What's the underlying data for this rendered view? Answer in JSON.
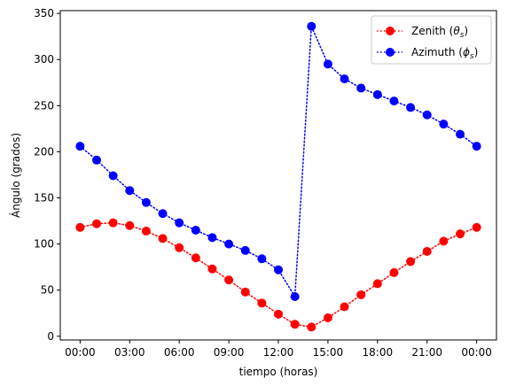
{
  "chart_data": {
    "type": "line",
    "title": "",
    "xlabel": "tiempo (horas)",
    "ylabel": "Ángulo (grados)",
    "x_ticks": [
      "00:00",
      "03:00",
      "06:00",
      "09:00",
      "12:00",
      "15:00",
      "18:00",
      "21:00",
      "00:00"
    ],
    "y_ticks": [
      "0",
      "50",
      "100",
      "150",
      "200",
      "250",
      "300",
      "350"
    ],
    "xlim": [
      -1.2,
      25.2
    ],
    "ylim": [
      -4,
      353
    ],
    "x_hours": [
      0,
      1,
      2,
      3,
      4,
      5,
      6,
      7,
      8,
      9,
      10,
      11,
      12,
      13,
      14,
      15,
      16,
      17,
      18,
      19,
      20,
      21,
      22,
      23,
      24
    ],
    "legend_position": "top-right",
    "grid": false,
    "series": [
      {
        "name": "Zenith (θs)",
        "color": "#ff0000",
        "marker": "circle",
        "line_style": "dotted",
        "values": [
          118,
          122,
          123,
          120,
          114,
          106,
          96,
          85,
          73,
          61,
          48,
          36,
          24,
          13,
          10,
          20,
          32,
          45,
          57,
          69,
          81,
          92,
          103,
          111,
          118
        ]
      },
      {
        "name": "Azimuth (ϕs)",
        "color": "#0000ff",
        "marker": "circle",
        "line_style": "dotted",
        "values": [
          206,
          191,
          174,
          158,
          145,
          133,
          123,
          115,
          107,
          100,
          93,
          84,
          72,
          43,
          336,
          295,
          279,
          269,
          262,
          255,
          248,
          240,
          230,
          219,
          206
        ]
      }
    ],
    "legend": {
      "zenith_main": "Zenith (",
      "zenith_sym": "θ",
      "zenith_sub": "s",
      "zenith_close": ")",
      "azimuth_main": "Azimuth (",
      "azimuth_sym": "ϕ",
      "azimuth_sub": "s",
      "azimuth_close": ")"
    }
  }
}
